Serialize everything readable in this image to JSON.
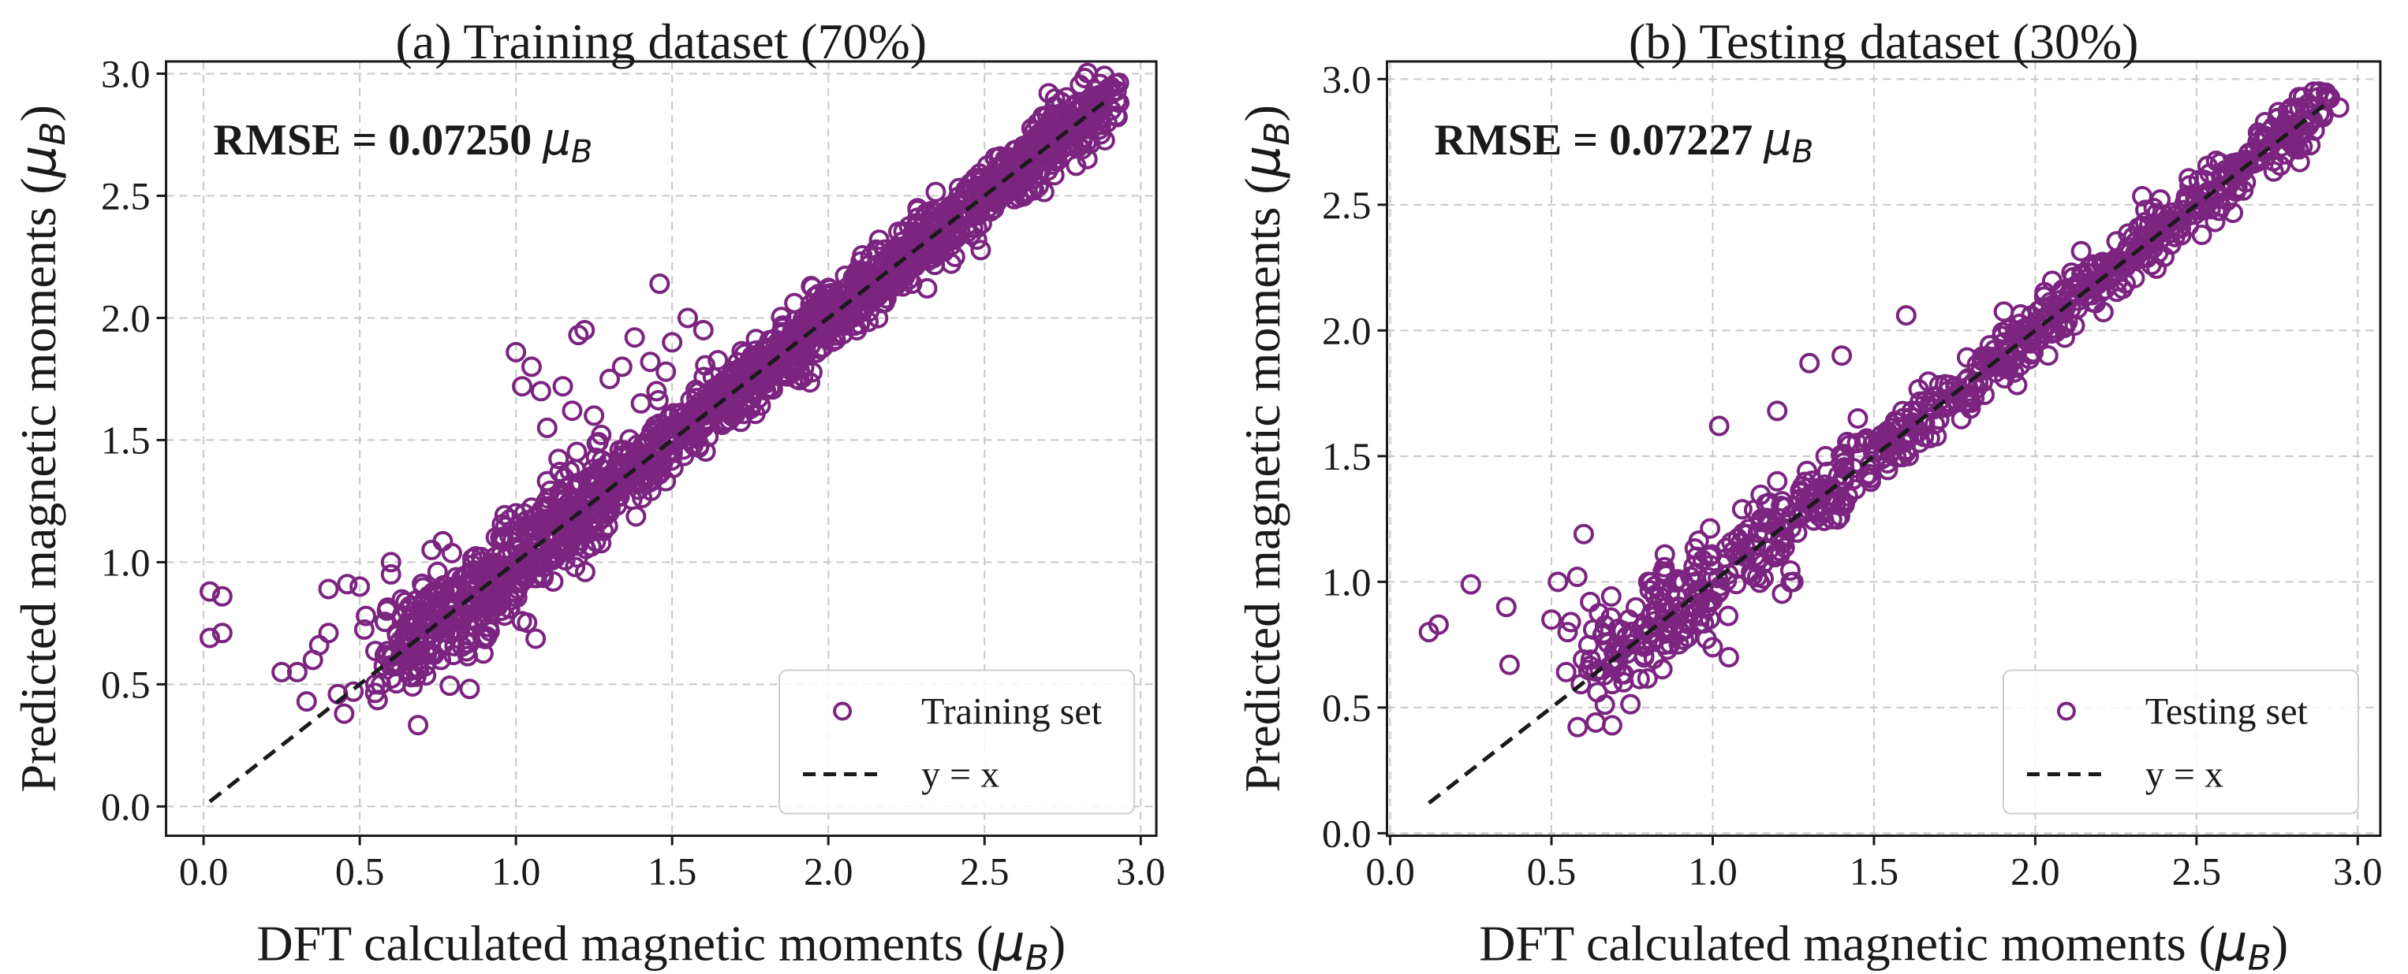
{
  "chart_data": [
    {
      "type": "scatter",
      "title": "(a) Training dataset (70%)",
      "xlabel": "DFT calculated magnetic moments (μB)",
      "xlabel_text": "DFT calculated magnetic moments (",
      "ylabel_text": "Predicted magnetic moments (",
      "unit_symbol": "μ",
      "unit_subscript": "B",
      "xlim": [
        -0.12,
        3.05
      ],
      "ylim": [
        -0.12,
        3.05
      ],
      "xticks": [
        "0.0",
        "0.5",
        "1.0",
        "1.5",
        "2.0",
        "2.5",
        "3.0"
      ],
      "yticks": [
        "0.0",
        "0.5",
        "1.0",
        "1.5",
        "2.0",
        "2.5",
        "3.0"
      ],
      "grid": true,
      "annotation_prefix": "RMSE = 0.07250 ",
      "rmse": 0.0725,
      "legend_position": "lower-right",
      "legend": [
        "Training set",
        "y = x"
      ],
      "marker_color": "#7b2480",
      "reference_line": {
        "name": "y = x",
        "x": [
          0.02,
          2.9
        ],
        "y": [
          0.02,
          2.9
        ]
      },
      "outliers": {
        "x": [
          0.02,
          0.06,
          0.02,
          0.06,
          0.25,
          0.3,
          0.33,
          0.35,
          0.37,
          0.4,
          0.4,
          0.43,
          0.45,
          0.46,
          0.48,
          0.5,
          0.52,
          0.55,
          0.58,
          0.6,
          0.6,
          0.62,
          0.66,
          0.7,
          0.73,
          0.76,
          0.8,
          0.85,
          0.9,
          1.0,
          1.02,
          1.05,
          1.08,
          1.1,
          1.15,
          1.18,
          1.2,
          1.22,
          1.25,
          1.3,
          1.34,
          1.38,
          1.4,
          1.43,
          1.46,
          1.48,
          1.5,
          1.55,
          1.6,
          0.95,
          1.0,
          1.45
        ],
        "y": [
          0.88,
          0.86,
          0.69,
          0.71,
          0.55,
          0.55,
          0.43,
          0.6,
          0.66,
          0.71,
          0.89,
          0.46,
          0.38,
          0.91,
          0.47,
          0.9,
          0.78,
          0.5,
          0.62,
          0.95,
          1.0,
          0.7,
          0.82,
          0.75,
          1.05,
          0.6,
          0.62,
          0.7,
          0.69,
          1.86,
          1.72,
          1.8,
          1.7,
          1.55,
          1.72,
          1.62,
          1.93,
          1.95,
          1.6,
          1.75,
          1.8,
          1.92,
          1.65,
          1.82,
          2.14,
          1.78,
          1.9,
          2.0,
          1.95,
          1.1,
          1.2,
          1.7
        ]
      },
      "bulk_spread": 0.06,
      "bulk_points_generated": 1600,
      "bulk_range": [
        0.6,
        2.9
      ]
    },
    {
      "type": "scatter",
      "title": "(b) Testing dataset (30%)",
      "xlabel": "DFT calculated magnetic moments (μB)",
      "xlabel_text": "DFT calculated magnetic moments (",
      "ylabel_text": "Predicted magnetic moments (",
      "unit_symbol": "μ",
      "unit_subscript": "B",
      "xlim": [
        -0.01,
        3.07
      ],
      "ylim": [
        -0.01,
        3.07
      ],
      "xticks": [
        "0.0",
        "0.5",
        "1.0",
        "1.5",
        "2.0",
        "2.5",
        "3.0"
      ],
      "yticks": [
        "0.0",
        "0.5",
        "1.0",
        "1.5",
        "2.0",
        "2.5",
        "3.0"
      ],
      "grid": true,
      "annotation_prefix": "RMSE = 0.07227 ",
      "rmse": 0.07227,
      "legend_position": "lower-right",
      "legend": [
        "Testing set",
        "y = x"
      ],
      "marker_color": "#7b2480",
      "reference_line": {
        "name": "y = x",
        "x": [
          0.12,
          2.9
        ],
        "y": [
          0.12,
          2.9
        ]
      },
      "outliers": {
        "x": [
          0.12,
          0.15,
          0.25,
          0.36,
          0.37,
          0.5,
          0.52,
          0.55,
          0.56,
          0.58,
          0.6,
          0.62,
          0.65,
          0.7,
          0.74,
          0.8,
          0.85,
          0.9,
          0.95,
          1.0,
          1.02,
          1.05,
          1.1,
          1.15,
          1.2,
          1.25,
          1.3,
          1.4,
          1.6,
          1.45,
          1.2,
          1.35
        ],
        "y": [
          0.8,
          0.83,
          0.99,
          0.9,
          0.67,
          0.85,
          1.0,
          0.8,
          0.84,
          1.02,
          1.19,
          0.92,
          0.65,
          0.72,
          0.85,
          1.0,
          0.75,
          0.8,
          1.1,
          0.74,
          1.62,
          0.7,
          1.1,
          1.25,
          1.68,
          1.0,
          1.87,
          1.9,
          2.06,
          1.65,
          1.4,
          1.5
        ]
      },
      "bulk_spread": 0.055,
      "bulk_points_generated": 750,
      "bulk_range": [
        0.6,
        2.9
      ]
    }
  ]
}
